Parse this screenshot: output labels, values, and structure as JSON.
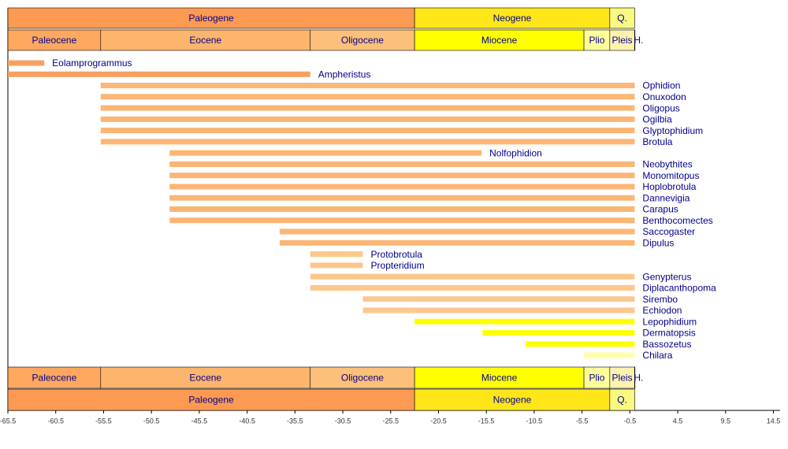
{
  "chart_data": {
    "type": "range-bar",
    "xlim": [
      -65.5,
      15.2
    ],
    "xticks": [
      -65.5,
      -60.5,
      -55.5,
      -50.5,
      -45.5,
      -40.5,
      -35.5,
      -30.5,
      -25.5,
      -20.5,
      -15.5,
      -10.5,
      -5.5,
      -0.5,
      4.5,
      9.5,
      14.5
    ],
    "periods": [
      {
        "name": "Paleogene",
        "start": -65.5,
        "end": -23.0,
        "color": "#fd9a52"
      },
      {
        "name": "Neogene",
        "start": -23.0,
        "end": -2.6,
        "color": "#ffe619"
      },
      {
        "name": "Q.",
        "start": -2.6,
        "end": 0,
        "color": "#f9f97f"
      }
    ],
    "epochs": [
      {
        "name": "Paleocene",
        "start": -65.5,
        "end": -55.8,
        "color": "#fda75f"
      },
      {
        "name": "Eocene",
        "start": -55.8,
        "end": -33.9,
        "color": "#fdb46c"
      },
      {
        "name": "Oligocene",
        "start": -33.9,
        "end": -23.0,
        "color": "#fdc07a"
      },
      {
        "name": "Miocene",
        "start": -23.0,
        "end": -5.3,
        "color": "#ffff00"
      },
      {
        "name": "Plio",
        "start": -5.3,
        "end": -2.6,
        "color": "#ffff99"
      },
      {
        "name": "Pleis",
        "start": -2.6,
        "end": -0.01,
        "color": "#fff2ae"
      },
      {
        "name": "H.",
        "start": -0.01,
        "end": 0,
        "color": "#fef2e0"
      }
    ],
    "series": [
      {
        "name": "Eolamprogrammus",
        "color": "#f8a060",
        "values": [
          -65.5,
          -61.7
        ]
      },
      {
        "name": "Ampheristus",
        "color": "#f8a060",
        "values": [
          -65.5,
          -33.9
        ]
      },
      {
        "name": "Ophidion",
        "color": "#fbb574",
        "values": [
          -55.8,
          0
        ]
      },
      {
        "name": "Onuxodon",
        "color": "#fbb574",
        "values": [
          -55.8,
          0
        ]
      },
      {
        "name": "Oligopus",
        "color": "#fbb574",
        "values": [
          -55.8,
          0
        ]
      },
      {
        "name": "Ogilbia",
        "color": "#fbb574",
        "values": [
          -55.8,
          0
        ]
      },
      {
        "name": "Glyptophidium",
        "color": "#fbb574",
        "values": [
          -55.8,
          0
        ]
      },
      {
        "name": "Brotula",
        "color": "#fbb574",
        "values": [
          -55.8,
          0
        ]
      },
      {
        "name": "Nolfophidion",
        "color": "#fbb574",
        "values": [
          -48.6,
          -16.0
        ]
      },
      {
        "name": "Neobythites",
        "color": "#fbb574",
        "values": [
          -48.6,
          0
        ]
      },
      {
        "name": "Monomitopus",
        "color": "#fbb574",
        "values": [
          -48.6,
          0
        ]
      },
      {
        "name": "Hoplobrotula",
        "color": "#fbb574",
        "values": [
          -48.6,
          0
        ]
      },
      {
        "name": "Dannevigia",
        "color": "#fbb574",
        "values": [
          -48.6,
          0
        ]
      },
      {
        "name": "Carapus",
        "color": "#fbb574",
        "values": [
          -48.6,
          0
        ]
      },
      {
        "name": "Benthocomectes",
        "color": "#fbb574",
        "values": [
          -48.6,
          0
        ]
      },
      {
        "name": "Saccogaster",
        "color": "#fbb574",
        "values": [
          -37.1,
          0
        ]
      },
      {
        "name": "Dipulus",
        "color": "#fbb574",
        "values": [
          -37.1,
          0
        ]
      },
      {
        "name": "Protobrotula",
        "color": "#fcc88a",
        "values": [
          -33.9,
          -28.4
        ]
      },
      {
        "name": "Propteridium",
        "color": "#fcc88a",
        "values": [
          -33.9,
          -28.4
        ]
      },
      {
        "name": "Genypterus",
        "color": "#fcc88a",
        "values": [
          -33.9,
          0
        ]
      },
      {
        "name": "Diplacanthopoma",
        "color": "#fcc88a",
        "values": [
          -33.9,
          0
        ]
      },
      {
        "name": "Sirembo",
        "color": "#fcc890",
        "values": [
          -28.4,
          0
        ]
      },
      {
        "name": "Echiodon",
        "color": "#fcc890",
        "values": [
          -28.4,
          0
        ]
      },
      {
        "name": "Lepophidium",
        "color": "#ffff00",
        "values": [
          -23.0,
          0
        ]
      },
      {
        "name": "Dermatopsis",
        "color": "#ffff00",
        "values": [
          -15.9,
          0
        ]
      },
      {
        "name": "Bassozetus",
        "color": "#ffff00",
        "values": [
          -11.4,
          0
        ]
      },
      {
        "name": "Chilara",
        "color": "#ffffaa",
        "values": [
          -5.3,
          0
        ]
      }
    ]
  }
}
